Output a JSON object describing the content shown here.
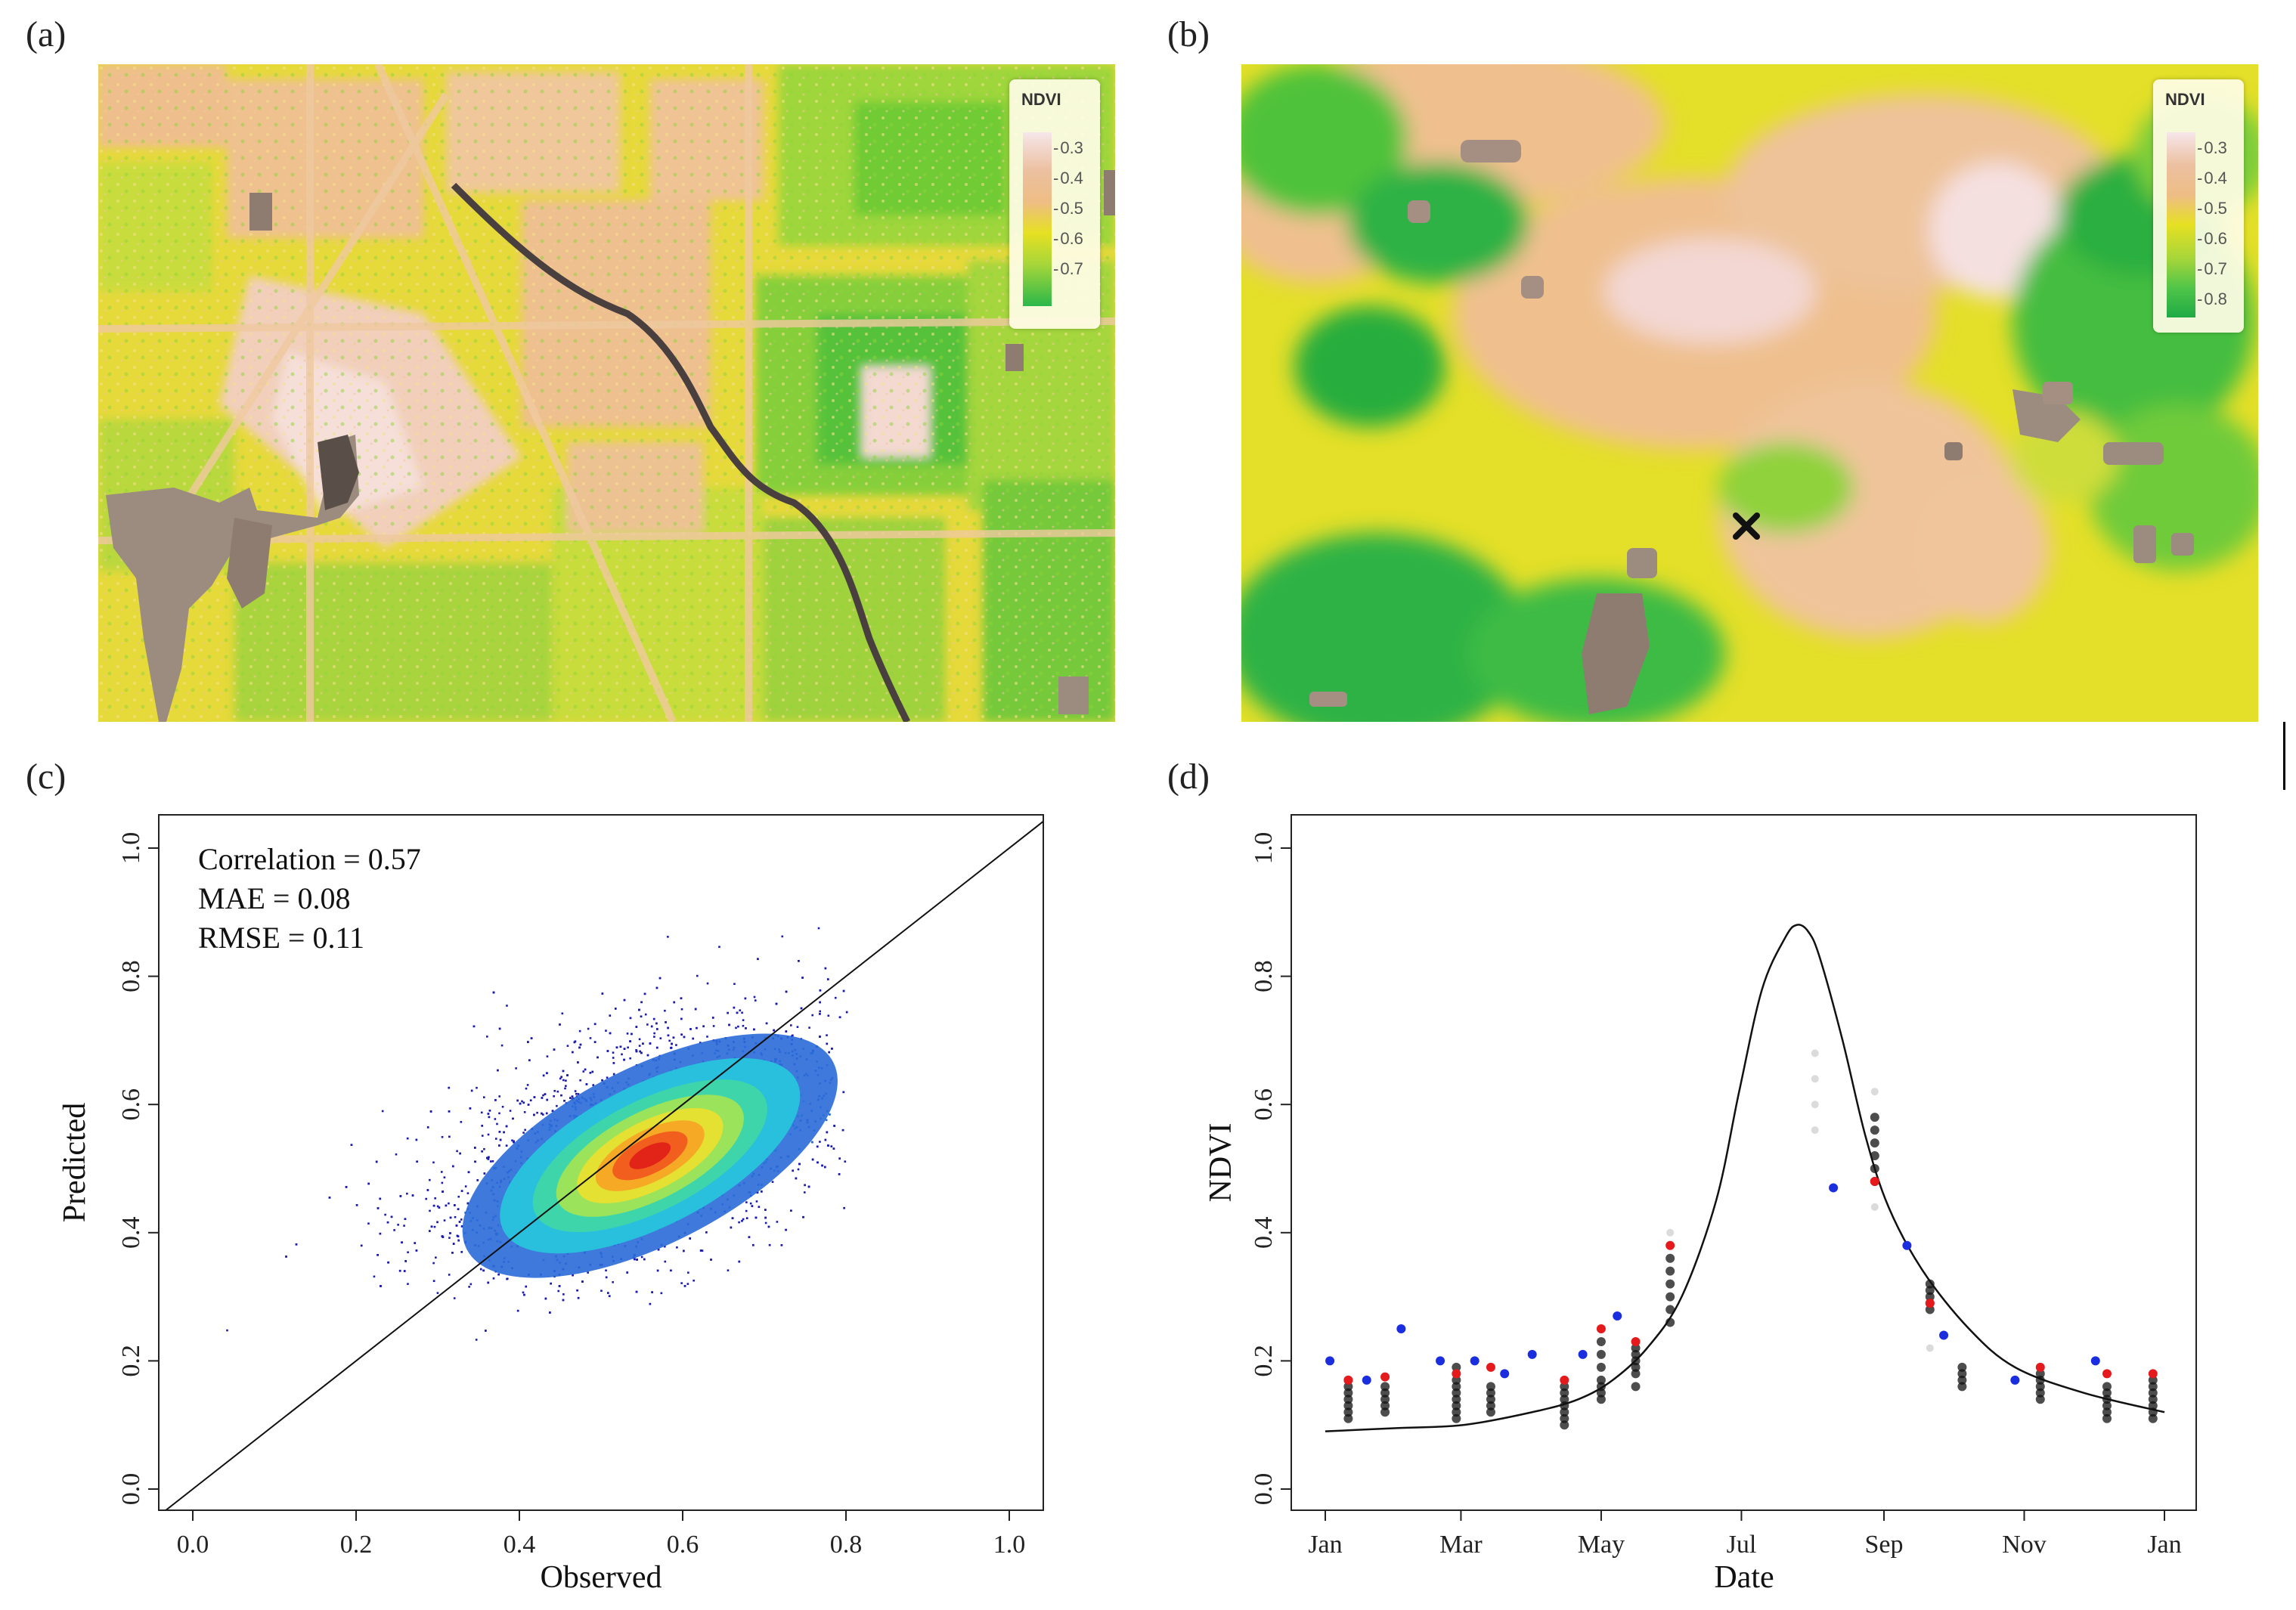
{
  "panels": {
    "a": {
      "letter": "(a)"
    },
    "b": {
      "letter": "(b)"
    },
    "c": {
      "letter": "(c)"
    },
    "d": {
      "letter": "(d)"
    }
  },
  "legends": {
    "a": {
      "title": "NDVI",
      "ticks": [
        "0.3",
        "0.4",
        "0.5",
        "0.6",
        "0.7"
      ]
    },
    "b": {
      "title": "NDVI",
      "ticks": [
        "0.3",
        "0.4",
        "0.5",
        "0.6",
        "0.7",
        "0.8"
      ]
    }
  },
  "colors": {
    "map_base": "#e9d836",
    "map_tan": "#eec08f",
    "map_pale": "#f3d9d0",
    "map_green": "#7fcf35",
    "map_deepgreen": "#2fb245",
    "map_cloud": "#9b8b80",
    "river": "#4a3f3f",
    "scatter_low": "#1a1ab0",
    "scatter_mid": "#28c8c0",
    "scatter_high": "#e8231c",
    "point_black": "#111111",
    "point_red": "#e41a1c",
    "point_blue": "#1a2ee0"
  },
  "chart_data": [
    {
      "panel": "c",
      "type": "scatter",
      "title": "",
      "xlabel": "Observed",
      "ylabel": "Predicted",
      "xlim": [
        0.0,
        1.0
      ],
      "ylim": [
        0.0,
        1.0
      ],
      "xticks": [
        "0.0",
        "0.2",
        "0.4",
        "0.6",
        "0.8",
        "1.0"
      ],
      "yticks": [
        "0.0",
        "0.2",
        "0.4",
        "0.6",
        "0.8",
        "1.0"
      ],
      "annotations": [
        "Correlation = 0.57",
        "MAE = 0.08",
        "RMSE = 0.11"
      ],
      "reference_line": {
        "from": [
          0,
          0
        ],
        "to": [
          1,
          1
        ]
      },
      "density": {
        "center": [
          0.56,
          0.52
        ],
        "major_slope": 0.65,
        "sd_major": 0.12,
        "sd_minor": 0.055
      }
    },
    {
      "panel": "d",
      "type": "scatter",
      "title": "",
      "xlabel": "Date",
      "ylabel": "NDVI",
      "xlim": [
        0,
        365
      ],
      "ylim": [
        0.0,
        1.0
      ],
      "xtick_positions": [
        0,
        59,
        120,
        181,
        243,
        304,
        365
      ],
      "xticks": [
        "Jan",
        "Mar",
        "May",
        "Jul",
        "Sep",
        "Nov",
        "Jan"
      ],
      "yticks": [
        "0.0",
        "0.2",
        "0.4",
        "0.6",
        "0.8",
        "1.0"
      ],
      "fitted_curve": {
        "x": [
          0,
          30,
          60,
          90,
          110,
          125,
          140,
          155,
          170,
          180,
          190,
          200,
          205,
          210,
          215,
          225,
          235,
          245,
          260,
          280,
          300,
          330,
          365
        ],
        "y": [
          0.09,
          0.095,
          0.1,
          0.12,
          0.14,
          0.17,
          0.22,
          0.3,
          0.45,
          0.62,
          0.78,
          0.86,
          0.88,
          0.87,
          0.83,
          0.7,
          0.55,
          0.44,
          0.34,
          0.25,
          0.19,
          0.15,
          0.12
        ]
      },
      "black_points": [
        {
          "x": 10,
          "y": [
            0.11,
            0.12,
            0.13,
            0.14,
            0.15,
            0.16,
            0.17
          ]
        },
        {
          "x": 26,
          "y": [
            0.12,
            0.13,
            0.14,
            0.15,
            0.16
          ]
        },
        {
          "x": 57,
          "y": [
            0.11,
            0.12,
            0.13,
            0.14,
            0.15,
            0.16,
            0.17,
            0.19
          ]
        },
        {
          "x": 72,
          "y": [
            0.12,
            0.13,
            0.14,
            0.15,
            0.16
          ]
        },
        {
          "x": 104,
          "y": [
            0.1,
            0.11,
            0.12,
            0.13,
            0.14,
            0.15,
            0.16
          ]
        },
        {
          "x": 120,
          "y": [
            0.14,
            0.15,
            0.16,
            0.17,
            0.19,
            0.21,
            0.23
          ]
        },
        {
          "x": 135,
          "y": [
            0.16,
            0.18,
            0.19,
            0.2,
            0.21,
            0.22
          ]
        },
        {
          "x": 150,
          "y": [
            0.26,
            0.28,
            0.3,
            0.32,
            0.34,
            0.36
          ]
        },
        {
          "x": 239,
          "y": [
            0.48,
            0.5,
            0.52,
            0.54,
            0.56,
            0.58
          ]
        },
        {
          "x": 263,
          "y": [
            0.28,
            0.29,
            0.3,
            0.31,
            0.32
          ]
        },
        {
          "x": 277,
          "y": [
            0.16,
            0.17,
            0.18,
            0.19
          ]
        },
        {
          "x": 311,
          "y": [
            0.14,
            0.15,
            0.16,
            0.17,
            0.18
          ]
        },
        {
          "x": 340,
          "y": [
            0.11,
            0.12,
            0.13,
            0.14,
            0.15,
            0.16
          ]
        },
        {
          "x": 360,
          "y": [
            0.11,
            0.12,
            0.13,
            0.14,
            0.15,
            0.16,
            0.17
          ]
        }
      ],
      "red_points": [
        {
          "x": 10,
          "y": 0.17
        },
        {
          "x": 26,
          "y": 0.175
        },
        {
          "x": 57,
          "y": 0.18
        },
        {
          "x": 72,
          "y": 0.19
        },
        {
          "x": 104,
          "y": 0.17
        },
        {
          "x": 120,
          "y": 0.25
        },
        {
          "x": 135,
          "y": 0.23
        },
        {
          "x": 150,
          "y": 0.38
        },
        {
          "x": 239,
          "y": 0.48
        },
        {
          "x": 263,
          "y": 0.29
        },
        {
          "x": 311,
          "y": 0.19
        },
        {
          "x": 340,
          "y": 0.18
        },
        {
          "x": 360,
          "y": 0.18
        }
      ],
      "blue_points": [
        {
          "x": 2,
          "y": 0.2
        },
        {
          "x": 18,
          "y": 0.17
        },
        {
          "x": 33,
          "y": 0.25
        },
        {
          "x": 50,
          "y": 0.2
        },
        {
          "x": 65,
          "y": 0.2
        },
        {
          "x": 78,
          "y": 0.18
        },
        {
          "x": 90,
          "y": 0.21
        },
        {
          "x": 112,
          "y": 0.21
        },
        {
          "x": 127,
          "y": 0.27
        },
        {
          "x": 221,
          "y": 0.47
        },
        {
          "x": 253,
          "y": 0.38
        },
        {
          "x": 269,
          "y": 0.24
        },
        {
          "x": 300,
          "y": 0.17
        },
        {
          "x": 335,
          "y": 0.2
        }
      ],
      "faint_points": [
        {
          "x": 213,
          "y": 0.68
        },
        {
          "x": 213,
          "y": 0.64
        },
        {
          "x": 213,
          "y": 0.6
        },
        {
          "x": 213,
          "y": 0.56
        },
        {
          "x": 239,
          "y": 0.62
        },
        {
          "x": 239,
          "y": 0.44
        },
        {
          "x": 150,
          "y": 0.4
        },
        {
          "x": 263,
          "y": 0.22
        }
      ]
    }
  ]
}
